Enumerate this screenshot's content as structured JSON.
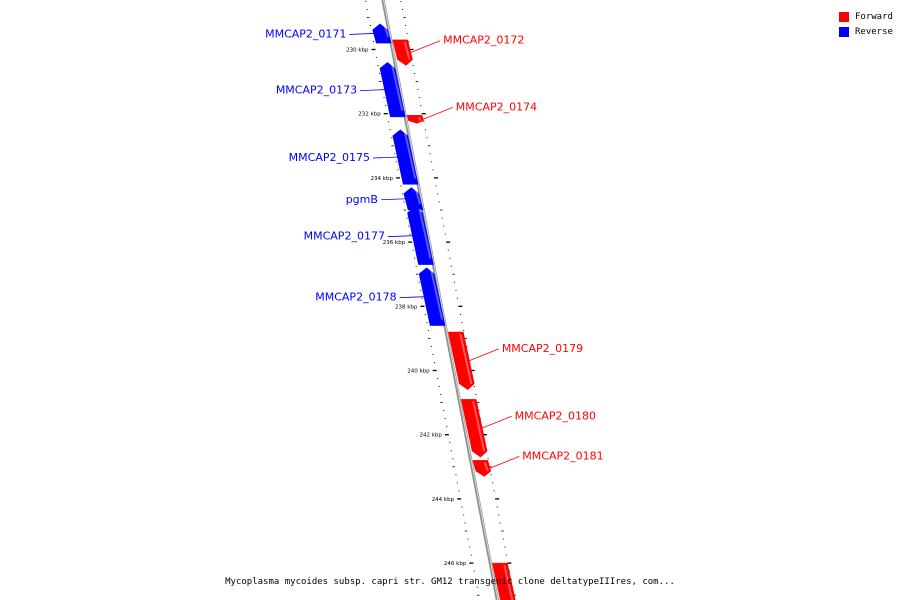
{
  "caption": "Mycoplasma mycoides subsp. capri str. GM12 transgenic clone deltatypeIIIres, com...",
  "legend": [
    {
      "label": "Forward",
      "color": "#ff0000"
    },
    {
      "label": "Reverse",
      "color": "#0000ff"
    }
  ],
  "ticks": [
    {
      "kbp": 230,
      "label": "230 kbp"
    },
    {
      "kbp": 232,
      "label": "232 kbp"
    },
    {
      "kbp": 234,
      "label": "234 kbp"
    },
    {
      "kbp": 236,
      "label": "236 kbp"
    },
    {
      "kbp": 238,
      "label": "238 kbp"
    },
    {
      "kbp": 240,
      "label": "240 kbp"
    },
    {
      "kbp": 242,
      "label": "242 kbp"
    },
    {
      "kbp": 244,
      "label": "244 kbp"
    },
    {
      "kbp": 246,
      "label": "246 kbp"
    }
  ],
  "genes": [
    {
      "name": "MMCAP2_0171",
      "strand": "reverse",
      "start_kbp": 229.2,
      "end_kbp": 229.8
    },
    {
      "name": "MMCAP2_0172",
      "strand": "forward",
      "start_kbp": 229.7,
      "end_kbp": 230.5
    },
    {
      "name": "MMCAP2_0173",
      "strand": "reverse",
      "start_kbp": 230.4,
      "end_kbp": 232.1
    },
    {
      "name": "MMCAP2_0174",
      "strand": "forward",
      "start_kbp": 232.05,
      "end_kbp": 232.3
    },
    {
      "name": "MMCAP2_0175",
      "strand": "reverse",
      "start_kbp": 232.5,
      "end_kbp": 234.2
    },
    {
      "name": "pgmB",
      "strand": "reverse",
      "start_kbp": 234.3,
      "end_kbp": 235.0
    },
    {
      "name": "MMCAP2_0177",
      "strand": "reverse",
      "start_kbp": 234.9,
      "end_kbp": 236.7
    },
    {
      "name": "MMCAP2_0178",
      "strand": "reverse",
      "start_kbp": 236.8,
      "end_kbp": 238.6
    },
    {
      "name": "MMCAP2_0179",
      "strand": "forward",
      "start_kbp": 238.8,
      "end_kbp": 240.6
    },
    {
      "name": "MMCAP2_0180",
      "strand": "forward",
      "start_kbp": 240.9,
      "end_kbp": 242.7
    },
    {
      "name": "MMCAP2_0181",
      "strand": "forward",
      "start_kbp": 242.8,
      "end_kbp": 243.3
    },
    {
      "name": "",
      "strand": "forward",
      "start_kbp": 246.0,
      "end_kbp": 247.5
    }
  ]
}
